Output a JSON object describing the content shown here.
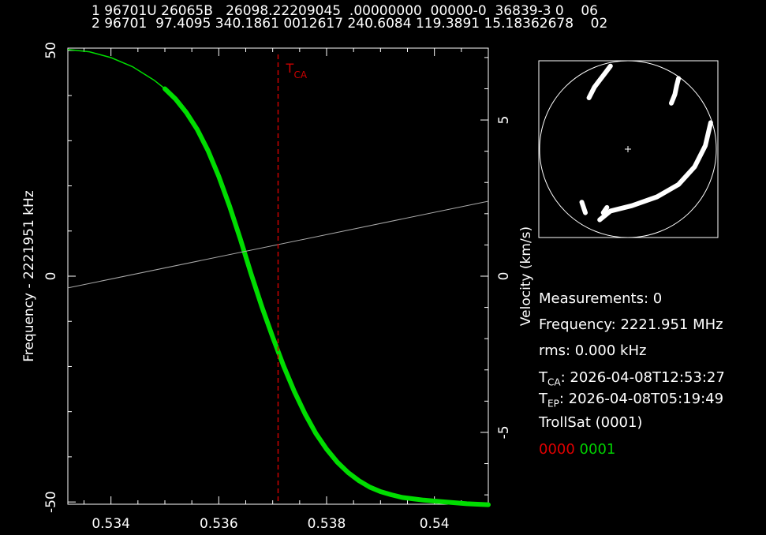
{
  "tle": {
    "line1": "1 96701U 26065B   26098.22209045  .00000000  00000-0  36839-3 0    06",
    "line2": "2 96701  97.4095 340.1861 0012617 240.6084 119.3891 15.18362678    02"
  },
  "chart_data": {
    "type": "line",
    "xlabel": "",
    "ylabel": "Frequency - 2221951 kHz",
    "y2label": "Velocity (km/s)",
    "xlim": [
      0.5332,
      0.541
    ],
    "ylim": [
      -50.5,
      50.5
    ],
    "y2lim": [
      -7.3,
      7.3
    ],
    "x_ticks": [
      0.534,
      0.536,
      0.538,
      0.54
    ],
    "x_tick_labels": [
      "0.534",
      "0.536",
      "0.538",
      "0.54"
    ],
    "y_ticks": [
      50,
      0,
      -50
    ],
    "y_tick_labels": [
      "50",
      "0",
      "-50"
    ],
    "y2_ticks": [
      5,
      0,
      -5
    ],
    "y2_tick_labels": [
      "5",
      "0",
      "-5"
    ],
    "tca": {
      "x": 0.5371,
      "label": "T",
      "sub": "CA",
      "color": "#cc0000"
    },
    "series": [
      {
        "color": "#00dd00",
        "x": [
          0.5332,
          0.5336,
          0.534,
          0.5344,
          0.5348,
          0.535,
          0.5352,
          0.5354,
          0.5356,
          0.5358,
          0.536,
          0.5362,
          0.5364,
          0.5366,
          0.5368,
          0.537,
          0.5372,
          0.5374,
          0.5376,
          0.5378,
          0.538,
          0.5382,
          0.5384,
          0.5386,
          0.5388,
          0.539,
          0.5392,
          0.5394,
          0.5396,
          0.5398,
          0.54,
          0.5402,
          0.5404,
          0.5406,
          0.5408,
          0.541
        ],
        "y": [
          50.2,
          49.7,
          48.4,
          46.4,
          43.4,
          41.5,
          39.2,
          36.2,
          32.5,
          27.8,
          22.1,
          15.5,
          8.2,
          0.5,
          -6.8,
          -13.5,
          -19.8,
          -25.5,
          -30.5,
          -34.8,
          -38.3,
          -41.2,
          -43.5,
          -45.3,
          -46.7,
          -47.7,
          -48.4,
          -49.0,
          -49.3,
          -49.6,
          -49.8,
          -50.0,
          -50.2,
          -50.4,
          -50.5,
          -50.6
        ]
      },
      {
        "color": "#aaaaaa",
        "x": [
          0.5332,
          0.541
        ],
        "y": [
          -2.6,
          16.6
        ]
      }
    ]
  },
  "skyplot": {
    "tracks": [
      [
        [
          0.4,
          0.03
        ],
        [
          0.37,
          0.07
        ],
        [
          0.34,
          0.11
        ],
        [
          0.31,
          0.15
        ],
        [
          0.28,
          0.21
        ]
      ],
      [
        [
          0.78,
          0.1
        ],
        [
          0.77,
          0.14
        ],
        [
          0.76,
          0.19
        ],
        [
          0.74,
          0.24
        ]
      ],
      [
        [
          0.96,
          0.35
        ],
        [
          0.93,
          0.48
        ],
        [
          0.87,
          0.6
        ],
        [
          0.78,
          0.7
        ],
        [
          0.66,
          0.77
        ],
        [
          0.52,
          0.82
        ],
        [
          0.4,
          0.85
        ],
        [
          0.34,
          0.9
        ]
      ],
      [
        [
          0.24,
          0.8
        ],
        [
          0.26,
          0.86
        ]
      ],
      [
        [
          0.38,
          0.83
        ],
        [
          0.36,
          0.86
        ]
      ]
    ]
  },
  "info": {
    "measurements": "Measurements: 0",
    "frequency": "Frequency: 2221.951 MHz",
    "rms": "rms: 0.000 kHz",
    "tca_label": "T",
    "tca_sub": "CA",
    "tca_value": ": 2026-04-08T12:53:27",
    "tep_label": "T",
    "tep_sub": "EP",
    "tep_value": ": 2026-04-08T05:19:49",
    "satellite": "TrollSat  (0001)",
    "code_red": "0000",
    "code_green": "0001"
  }
}
